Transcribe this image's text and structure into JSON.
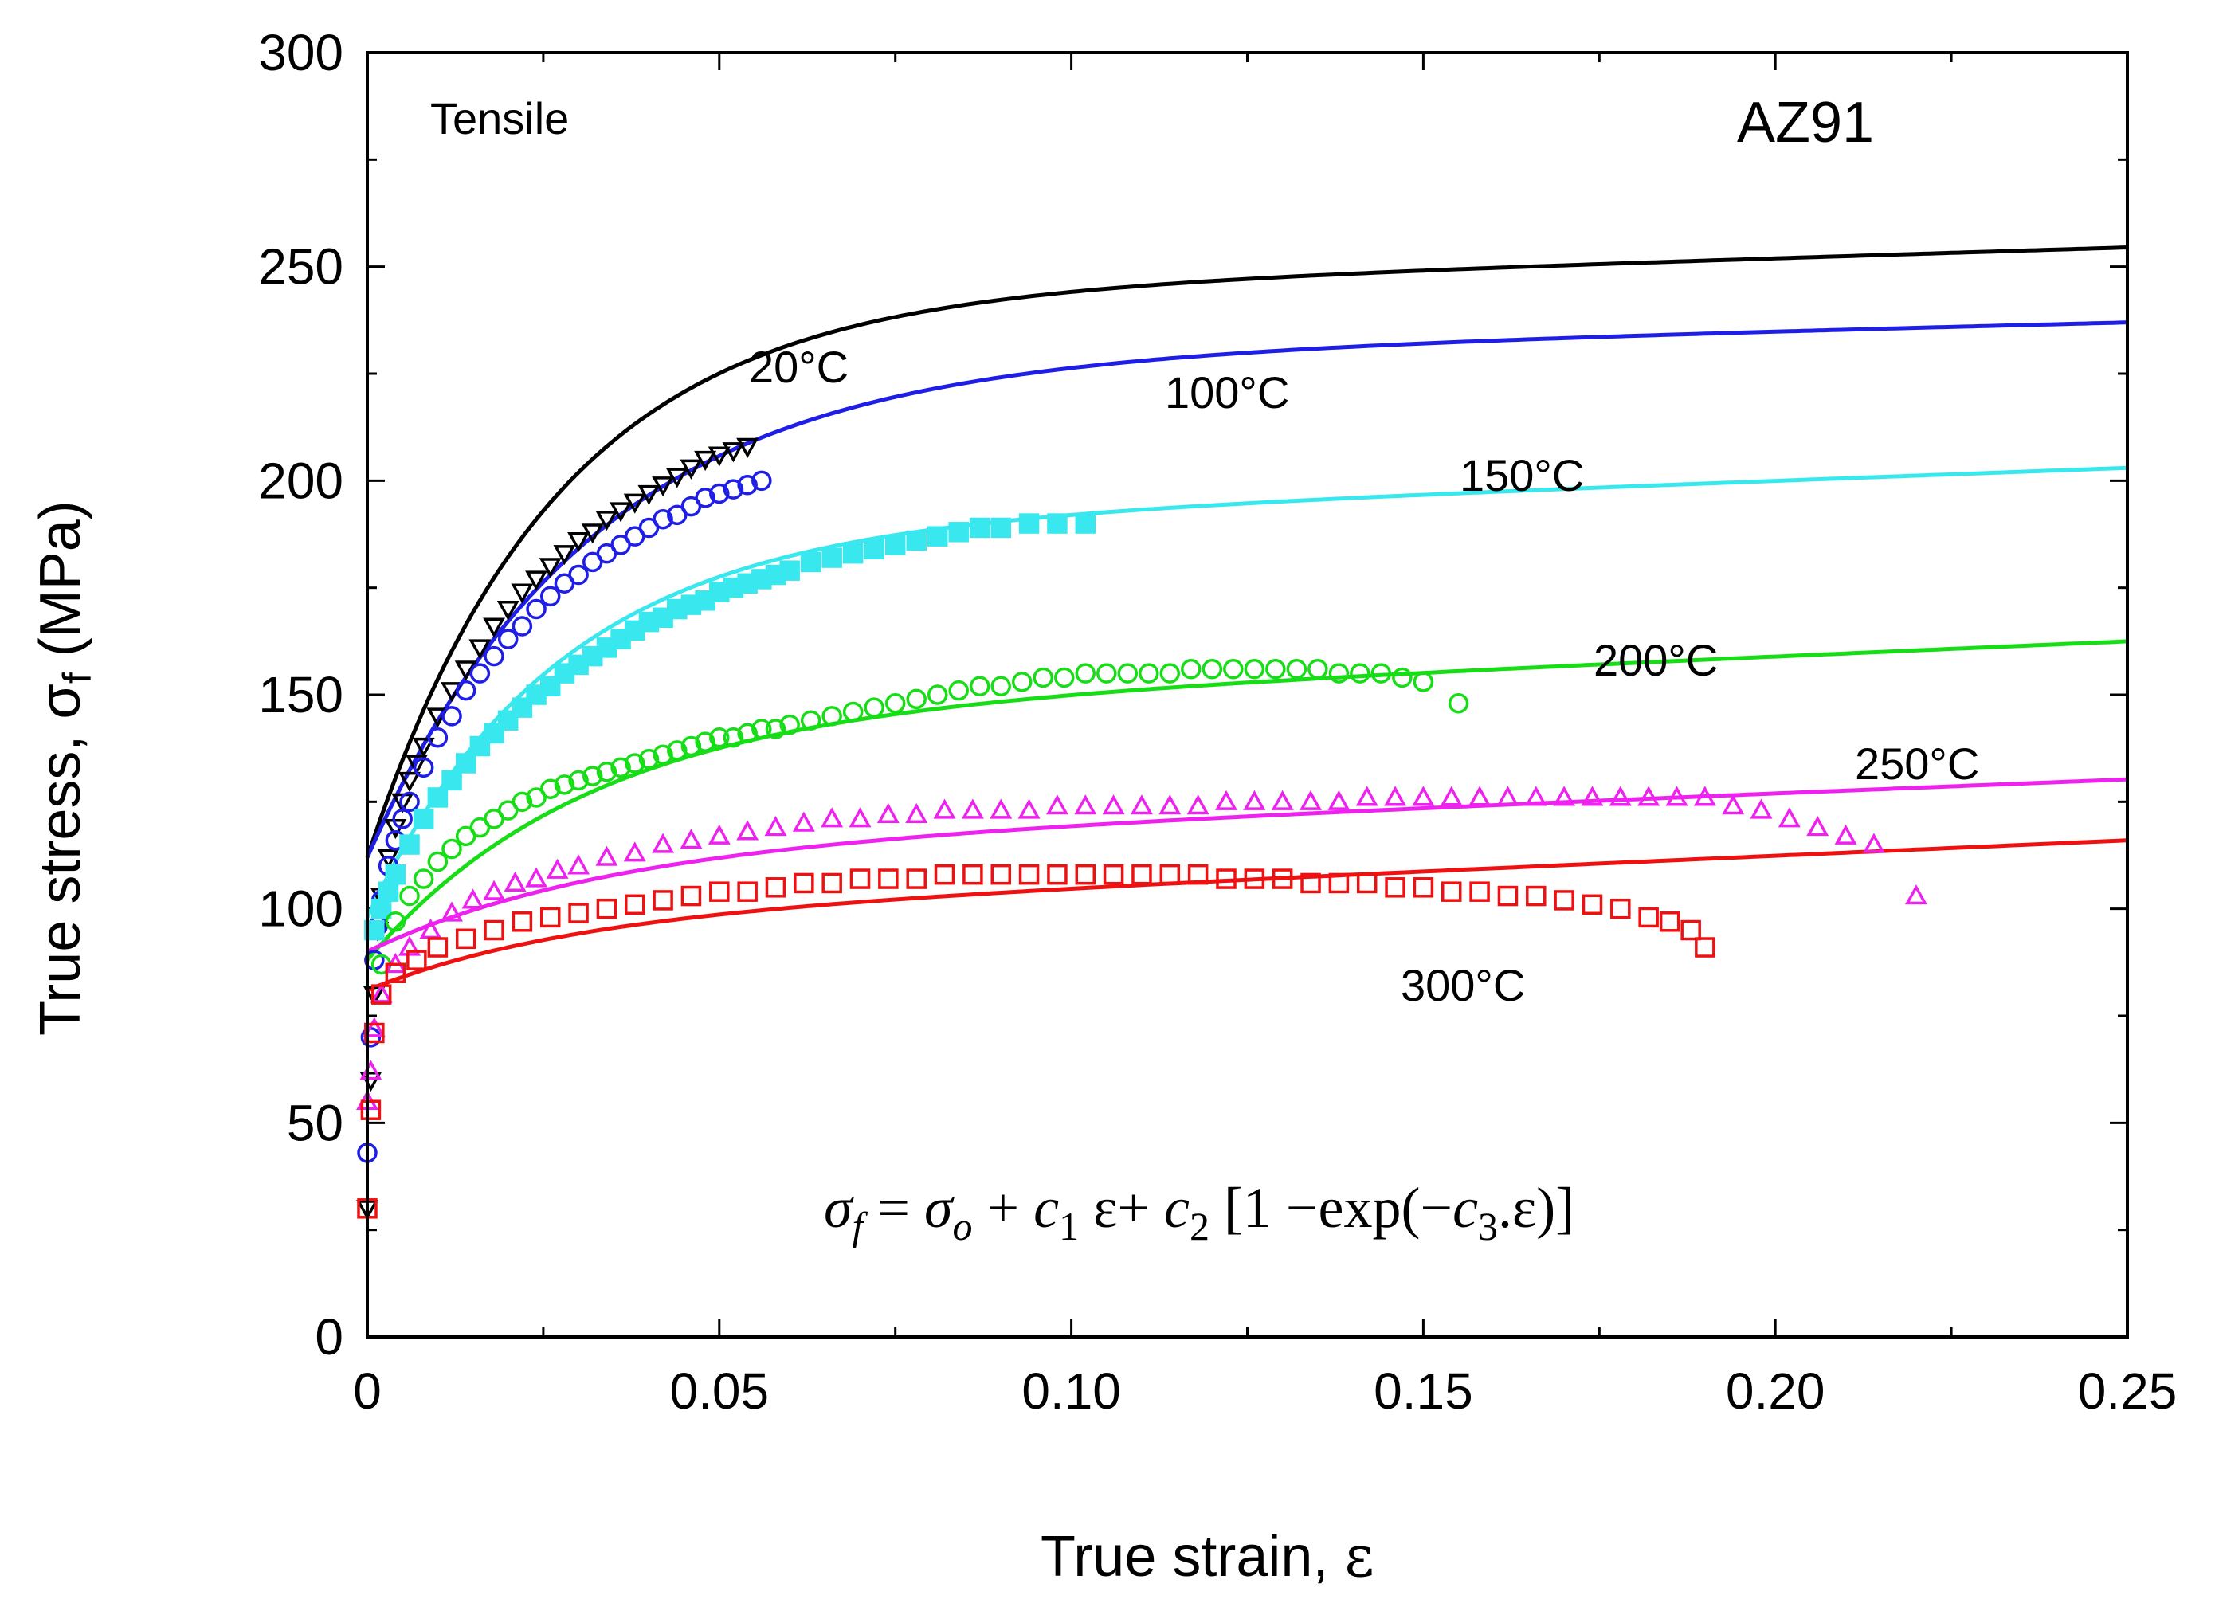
{
  "chart_data": {
    "type": "scatter",
    "title": "AZ91",
    "test_label": "Tensile",
    "xlabel_text": "True strain, ",
    "xlabel_symbol": "ε",
    "ylabel_text": "True stress, ",
    "ylabel_symbol": "σ",
    "ylabel_sub": "f",
    "ylabel_unit": " (MPa)",
    "xlim": [
      0,
      0.25
    ],
    "ylim": [
      0,
      300
    ],
    "xticks": [
      0,
      0.05,
      0.1,
      0.15,
      0.2,
      0.25
    ],
    "xtick_labels": [
      "0",
      "0.05",
      "0.10",
      "0.15",
      "0.20",
      "0.25"
    ],
    "yticks": [
      0,
      50,
      100,
      150,
      200,
      250,
      300
    ],
    "ytick_labels": [
      "0",
      "50",
      "100",
      "150",
      "200",
      "250",
      "300"
    ],
    "equation": {
      "sigma_f": "σ",
      "sub_f": "f",
      "eq1": " = ",
      "sigma_o": "σ",
      "sub_o": "o",
      "plus": " +  ",
      "c1": "c",
      "sub_1": "1",
      "eps1": " ε+ ",
      "c2": "c",
      "sub_2": "2",
      "bracket": " [1 −exp(−",
      "c3": "c",
      "sub_3": "3",
      "tail": ".ε)]"
    },
    "series": [
      {
        "name": "20°C",
        "label": "20°C",
        "color": "#000000",
        "marker": "triangle-down",
        "fit": {
          "s0": 112,
          "c1": 50,
          "c2": 130,
          "c3": 38
        },
        "x": [
          0,
          0.0005,
          0.001,
          0.0015,
          0.002,
          0.003,
          0.004,
          0.005,
          0.006,
          0.007,
          0.008,
          0.01,
          0.012,
          0.014,
          0.016,
          0.018,
          0.02,
          0.022,
          0.024,
          0.026,
          0.028,
          0.03,
          0.032,
          0.034,
          0.036,
          0.038,
          0.04,
          0.042,
          0.044,
          0.046,
          0.048,
          0.05,
          0.052,
          0.054
        ],
        "y": [
          30,
          60,
          80,
          95,
          103,
          112,
          119,
          125,
          130,
          134,
          138,
          145,
          151,
          156,
          161,
          166,
          170,
          174,
          177,
          180,
          183,
          186,
          188,
          191,
          193,
          195,
          197,
          199,
          201,
          203,
          205,
          206,
          207,
          208
        ]
      },
      {
        "name": "100°C",
        "label": "100°C",
        "color": "#1e1ee6",
        "marker": "circle",
        "fit": {
          "s0": 112,
          "c1": 40,
          "c2": 115,
          "c3": 32
        },
        "x": [
          0,
          0.0005,
          0.001,
          0.0015,
          0.002,
          0.003,
          0.004,
          0.005,
          0.006,
          0.008,
          0.01,
          0.012,
          0.014,
          0.016,
          0.018,
          0.02,
          0.022,
          0.024,
          0.026,
          0.028,
          0.03,
          0.032,
          0.034,
          0.036,
          0.038,
          0.04,
          0.042,
          0.044,
          0.046,
          0.048,
          0.05,
          0.052,
          0.054,
          0.056
        ],
        "y": [
          43,
          70,
          88,
          96,
          102,
          110,
          116,
          121,
          125,
          133,
          140,
          145,
          151,
          155,
          159,
          163,
          166,
          170,
          173,
          176,
          178,
          181,
          183,
          185,
          187,
          189,
          191,
          192,
          194,
          196,
          197,
          198,
          199,
          200
        ]
      },
      {
        "name": "150°C",
        "label": "150°C",
        "color": "#38e8ee",
        "marker": "square-filled",
        "fit": {
          "s0": 98,
          "c1": 60,
          "c2": 90,
          "c3": 38
        },
        "x": [
          0.001,
          0.002,
          0.003,
          0.004,
          0.006,
          0.008,
          0.01,
          0.012,
          0.014,
          0.016,
          0.018,
          0.02,
          0.022,
          0.024,
          0.026,
          0.028,
          0.03,
          0.032,
          0.034,
          0.036,
          0.038,
          0.04,
          0.042,
          0.044,
          0.046,
          0.048,
          0.05,
          0.052,
          0.054,
          0.056,
          0.058,
          0.06,
          0.063,
          0.066,
          0.069,
          0.072,
          0.075,
          0.078,
          0.081,
          0.084,
          0.087,
          0.09,
          0.094,
          0.098,
          0.102
        ],
        "y": [
          95,
          100,
          104,
          108,
          115,
          121,
          126,
          130,
          134,
          138,
          141,
          144,
          147,
          150,
          152,
          155,
          157,
          159,
          161,
          163,
          165,
          167,
          168,
          170,
          171,
          172,
          174,
          175,
          176,
          177,
          178,
          179,
          181,
          182,
          183,
          184,
          185,
          186,
          187,
          188,
          189,
          189,
          190,
          190,
          190
        ]
      },
      {
        "name": "200°C",
        "label": "200°C",
        "color": "#17dd17",
        "marker": "circle",
        "fit": {
          "s0": 88,
          "c1": 70,
          "c2": 57,
          "c3": 33
        },
        "x": [
          0.002,
          0.004,
          0.006,
          0.008,
          0.01,
          0.012,
          0.014,
          0.016,
          0.018,
          0.02,
          0.022,
          0.024,
          0.026,
          0.028,
          0.03,
          0.032,
          0.034,
          0.036,
          0.038,
          0.04,
          0.042,
          0.044,
          0.046,
          0.048,
          0.05,
          0.052,
          0.054,
          0.056,
          0.058,
          0.06,
          0.063,
          0.066,
          0.069,
          0.072,
          0.075,
          0.078,
          0.081,
          0.084,
          0.087,
          0.09,
          0.093,
          0.096,
          0.099,
          0.102,
          0.105,
          0.108,
          0.111,
          0.114,
          0.117,
          0.12,
          0.123,
          0.126,
          0.129,
          0.132,
          0.135,
          0.138,
          0.141,
          0.144,
          0.147,
          0.15,
          0.155
        ],
        "y": [
          87,
          97,
          103,
          107,
          111,
          114,
          117,
          119,
          121,
          123,
          125,
          126,
          128,
          129,
          130,
          131,
          132,
          133,
          134,
          135,
          136,
          137,
          138,
          139,
          140,
          140,
          141,
          142,
          142,
          143,
          144,
          145,
          146,
          147,
          148,
          149,
          150,
          151,
          152,
          152,
          153,
          154,
          154,
          155,
          155,
          155,
          155,
          155,
          156,
          156,
          156,
          156,
          156,
          156,
          156,
          155,
          155,
          155,
          154,
          153,
          148
        ]
      },
      {
        "name": "250°C",
        "label": "250°C",
        "color": "#ee22ee",
        "marker": "triangle-up",
        "fit": {
          "s0": 90,
          "c1": 65,
          "c2": 24,
          "c3": 30
        },
        "x": [
          0,
          0.0005,
          0.001,
          0.002,
          0.004,
          0.006,
          0.009,
          0.012,
          0.015,
          0.018,
          0.021,
          0.024,
          0.027,
          0.03,
          0.034,
          0.038,
          0.042,
          0.046,
          0.05,
          0.054,
          0.058,
          0.062,
          0.066,
          0.07,
          0.074,
          0.078,
          0.082,
          0.086,
          0.09,
          0.094,
          0.098,
          0.102,
          0.106,
          0.11,
          0.114,
          0.118,
          0.122,
          0.126,
          0.13,
          0.134,
          0.138,
          0.142,
          0.146,
          0.15,
          0.154,
          0.158,
          0.162,
          0.166,
          0.17,
          0.174,
          0.178,
          0.182,
          0.186,
          0.19,
          0.194,
          0.198,
          0.202,
          0.206,
          0.21,
          0.214,
          0.22
        ],
        "y": [
          55,
          62,
          72,
          80,
          87,
          91,
          95,
          99,
          102,
          104,
          106,
          107,
          109,
          110,
          112,
          113,
          115,
          116,
          117,
          118,
          119,
          120,
          121,
          121,
          122,
          122,
          123,
          123,
          123,
          123,
          124,
          124,
          124,
          124,
          124,
          124,
          125,
          125,
          125,
          125,
          125,
          126,
          126,
          126,
          126,
          126,
          126,
          126,
          126,
          126,
          126,
          126,
          126,
          126,
          124,
          123,
          121,
          119,
          117,
          115,
          103
        ]
      },
      {
        "name": "300°C",
        "label": "300°C",
        "color": "#ee1111",
        "marker": "square",
        "fit": {
          "s0": 81,
          "c1": 72,
          "c2": 17,
          "c3": 35
        },
        "x": [
          0,
          0.0005,
          0.001,
          0.002,
          0.004,
          0.007,
          0.01,
          0.014,
          0.018,
          0.022,
          0.026,
          0.03,
          0.034,
          0.038,
          0.042,
          0.046,
          0.05,
          0.054,
          0.058,
          0.062,
          0.066,
          0.07,
          0.074,
          0.078,
          0.082,
          0.086,
          0.09,
          0.094,
          0.098,
          0.102,
          0.106,
          0.11,
          0.114,
          0.118,
          0.122,
          0.126,
          0.13,
          0.134,
          0.138,
          0.142,
          0.146,
          0.15,
          0.154,
          0.158,
          0.162,
          0.166,
          0.17,
          0.174,
          0.178,
          0.182,
          0.185,
          0.188,
          0.19
        ],
        "y": [
          30,
          53,
          71,
          80,
          85,
          88,
          91,
          93,
          95,
          97,
          98,
          99,
          100,
          101,
          102,
          103,
          104,
          104,
          105,
          106,
          106,
          107,
          107,
          107,
          108,
          108,
          108,
          108,
          108,
          108,
          108,
          108,
          108,
          108,
          107,
          107,
          107,
          106,
          106,
          106,
          105,
          105,
          104,
          104,
          103,
          103,
          102,
          101,
          100,
          98,
          97,
          95,
          91
        ]
      }
    ]
  }
}
